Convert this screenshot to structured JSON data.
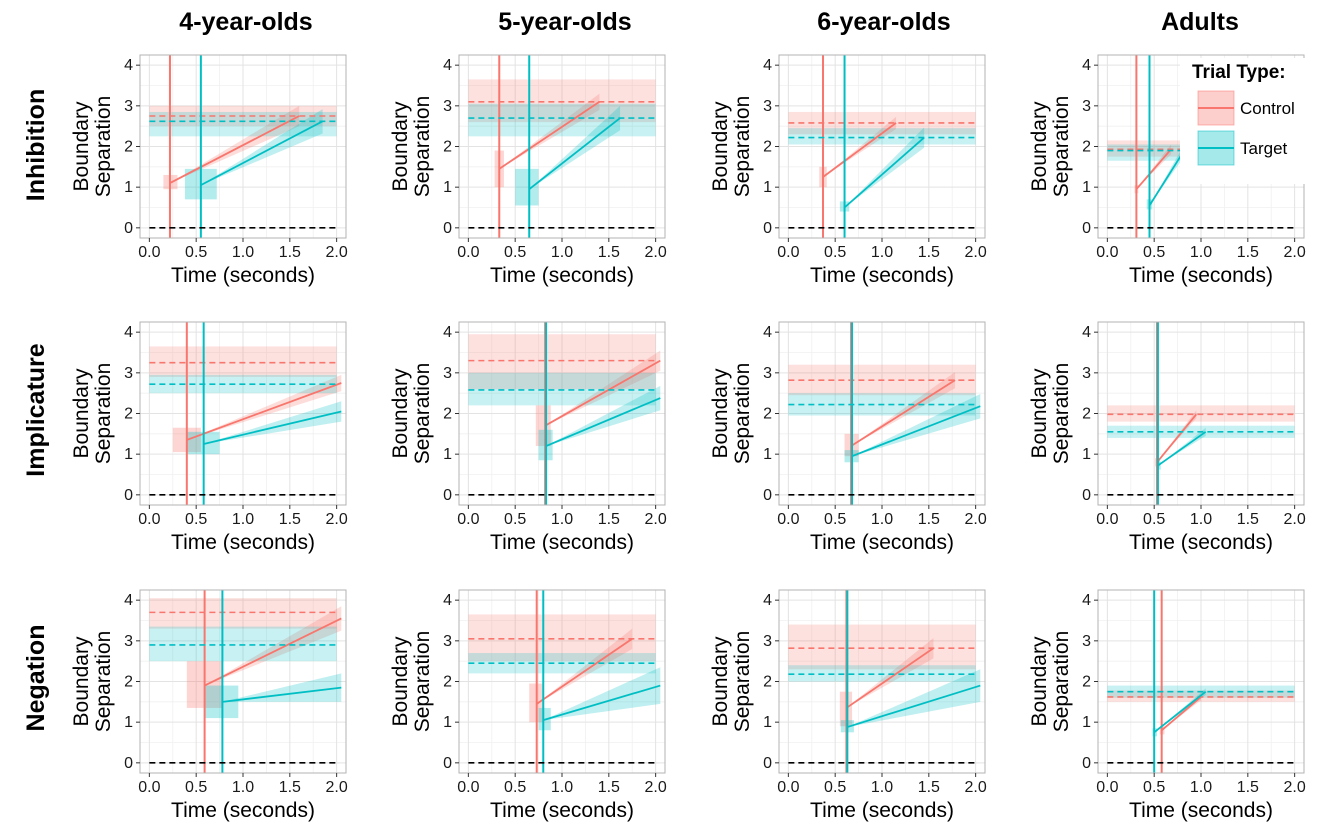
{
  "chart_data": {
    "type": "line",
    "colors": {
      "control": "#F8766D",
      "target": "#00BFC4",
      "zero_line": "#000000"
    },
    "column_titles": [
      "4-year-olds",
      "5-year-olds",
      "6-year-olds",
      "Adults"
    ],
    "row_titles": [
      "Inhibition",
      "Implicature",
      "Negation"
    ],
    "xlabel": "Time (seconds)",
    "ylabel_line1": "Boundary",
    "ylabel_line2": "Separation",
    "xlim": [
      -0.1,
      2.1
    ],
    "ylim": [
      -0.25,
      4.25
    ],
    "x_ticks": [
      "0.0",
      "0.5",
      "1.0",
      "1.5",
      "2.0"
    ],
    "y_ticks": [
      "0",
      "1",
      "2",
      "3",
      "4"
    ],
    "grid": true,
    "legend": {
      "title": "Trial Type:",
      "placement": "top-right",
      "items": [
        {
          "label": "Control",
          "key": "control"
        },
        {
          "label": "Target",
          "key": "target"
        }
      ]
    },
    "panels": [
      {
        "row": 0,
        "col": 0,
        "series": {
          "control": {
            "ndt": 0.22,
            "bound": 2.75,
            "bound_band": [
              2.5,
              3.0
            ],
            "start": [
              0.22,
              1.1
            ],
            "start_box": [
              0.15,
              0.3,
              0.95,
              1.3
            ],
            "end": [
              1.6,
              2.75
            ],
            "wedge_halfwidth": 0.25
          },
          "target": {
            "ndt": 0.55,
            "bound": 2.62,
            "bound_band": [
              2.25,
              2.85
            ],
            "start": [
              0.55,
              1.05
            ],
            "start_box": [
              0.38,
              0.72,
              0.7,
              1.45
            ],
            "end": [
              1.85,
              2.62
            ],
            "wedge_halfwidth": 0.3
          }
        }
      },
      {
        "row": 0,
        "col": 1,
        "series": {
          "control": {
            "ndt": 0.33,
            "bound": 3.1,
            "bound_band": [
              2.6,
              3.65
            ],
            "start": [
              0.33,
              1.45
            ],
            "start_box": [
              0.28,
              0.38,
              1.0,
              1.9
            ],
            "end": [
              1.4,
              3.1
            ],
            "wedge_halfwidth": 0.2
          },
          "target": {
            "ndt": 0.65,
            "bound": 2.7,
            "bound_band": [
              2.25,
              3.05
            ],
            "start": [
              0.65,
              0.95
            ],
            "start_box": [
              0.5,
              0.75,
              0.55,
              1.45
            ],
            "end": [
              1.62,
              2.7
            ],
            "wedge_halfwidth": 0.3
          }
        }
      },
      {
        "row": 0,
        "col": 2,
        "series": {
          "control": {
            "ndt": 0.37,
            "bound": 2.58,
            "bound_band": [
              2.3,
              2.85
            ],
            "start": [
              0.37,
              1.25
            ],
            "start_box": [
              0.33,
              0.41,
              1.0,
              1.5
            ],
            "end": [
              1.15,
              2.58
            ],
            "wedge_halfwidth": 0.15
          },
          "target": {
            "ndt": 0.6,
            "bound": 2.22,
            "bound_band": [
              2.05,
              2.45
            ],
            "start": [
              0.6,
              0.5
            ],
            "start_box": [
              0.55,
              0.65,
              0.4,
              0.65
            ],
            "end": [
              1.45,
              2.22
            ],
            "wedge_halfwidth": 0.25
          }
        }
      },
      {
        "row": 0,
        "col": 3,
        "series": {
          "control": {
            "ndt": 0.31,
            "bound": 1.93,
            "bound_band": [
              1.75,
              2.15
            ],
            "start": [
              0.31,
              0.95
            ],
            "start_box": [
              0.29,
              0.33,
              0.85,
              1.05
            ],
            "end": [
              0.68,
              1.93
            ],
            "wedge_halfwidth": 0.12
          },
          "target": {
            "ndt": 0.45,
            "bound": 1.9,
            "bound_band": [
              1.65,
              2.05
            ],
            "start": [
              0.45,
              0.55
            ],
            "start_box": [
              0.42,
              0.48,
              0.45,
              0.7
            ],
            "end": [
              0.82,
              1.9
            ],
            "wedge_halfwidth": 0.15
          }
        }
      },
      {
        "row": 1,
        "col": 0,
        "series": {
          "control": {
            "ndt": 0.4,
            "bound": 3.25,
            "bound_band": [
              2.9,
              3.65
            ],
            "start": [
              0.4,
              1.35
            ],
            "start_box": [
              0.25,
              0.55,
              1.05,
              1.65
            ],
            "end": [
              2.05,
              2.75
            ],
            "wedge_halfwidth": 0.2
          },
          "target": {
            "ndt": 0.58,
            "bound": 2.72,
            "bound_band": [
              2.5,
              2.95
            ],
            "start": [
              0.58,
              1.25
            ],
            "start_box": [
              0.4,
              0.75,
              1.0,
              1.55
            ],
            "end": [
              2.05,
              2.05
            ],
            "wedge_halfwidth": 0.25
          }
        }
      },
      {
        "row": 1,
        "col": 1,
        "series": {
          "control": {
            "ndt": 0.82,
            "bound": 3.3,
            "bound_band": [
              2.6,
              3.95
            ],
            "start": [
              0.82,
              1.7
            ],
            "start_box": [
              0.72,
              0.88,
              1.2,
              2.2
            ],
            "end": [
              2.05,
              3.3
            ],
            "wedge_halfwidth": 0.25
          },
          "target": {
            "ndt": 0.83,
            "bound": 2.58,
            "bound_band": [
              2.2,
              3.0
            ],
            "start": [
              0.83,
              1.2
            ],
            "start_box": [
              0.75,
              0.9,
              0.85,
              1.6
            ],
            "end": [
              2.05,
              2.38
            ],
            "wedge_halfwidth": 0.3
          }
        }
      },
      {
        "row": 1,
        "col": 2,
        "series": {
          "control": {
            "ndt": 0.67,
            "bound": 2.82,
            "bound_band": [
              2.45,
              3.2
            ],
            "start": [
              0.67,
              1.2
            ],
            "start_box": [
              0.6,
              0.75,
              0.95,
              1.5
            ],
            "end": [
              1.78,
              2.82
            ],
            "wedge_halfwidth": 0.2
          },
          "target": {
            "ndt": 0.68,
            "bound": 2.22,
            "bound_band": [
              1.95,
              2.5
            ],
            "start": [
              0.68,
              0.95
            ],
            "start_box": [
              0.6,
              0.75,
              0.8,
              1.1
            ],
            "end": [
              2.05,
              2.18
            ],
            "wedge_halfwidth": 0.3
          }
        }
      },
      {
        "row": 1,
        "col": 3,
        "series": {
          "control": {
            "ndt": 0.53,
            "bound": 1.98,
            "bound_band": [
              1.8,
              2.2
            ],
            "start": [
              0.53,
              0.8
            ],
            "start_box": [
              0.51,
              0.56,
              0.7,
              0.9
            ],
            "end": [
              0.95,
              1.98
            ],
            "wedge_halfwidth": 0.1
          },
          "target": {
            "ndt": 0.54,
            "bound": 1.55,
            "bound_band": [
              1.4,
              1.7
            ],
            "start": [
              0.54,
              0.72
            ],
            "start_box": [
              0.52,
              0.57,
              0.62,
              0.82
            ],
            "end": [
              1.05,
              1.55
            ],
            "wedge_halfwidth": 0.1
          }
        }
      },
      {
        "row": 2,
        "col": 0,
        "series": {
          "control": {
            "ndt": 0.59,
            "bound": 3.7,
            "bound_band": [
              3.3,
              4.05
            ],
            "start": [
              0.59,
              1.9
            ],
            "start_box": [
              0.4,
              0.78,
              1.35,
              2.5
            ],
            "end": [
              2.05,
              3.55
            ],
            "wedge_halfwidth": 0.3
          },
          "target": {
            "ndt": 0.78,
            "bound": 2.9,
            "bound_band": [
              2.5,
              3.35
            ],
            "start": [
              0.78,
              1.5
            ],
            "start_box": [
              0.6,
              0.95,
              1.1,
              1.9
            ],
            "end": [
              2.05,
              1.85
            ],
            "wedge_halfwidth": 0.35
          }
        }
      },
      {
        "row": 2,
        "col": 1,
        "series": {
          "control": {
            "ndt": 0.73,
            "bound": 3.05,
            "bound_band": [
              2.5,
              3.65
            ],
            "start": [
              0.73,
              1.45
            ],
            "start_box": [
              0.65,
              0.8,
              1.0,
              1.95
            ],
            "end": [
              1.75,
              3.05
            ],
            "wedge_halfwidth": 0.25
          },
          "target": {
            "ndt": 0.8,
            "bound": 2.45,
            "bound_band": [
              2.2,
              2.7
            ],
            "start": [
              0.8,
              1.05
            ],
            "start_box": [
              0.75,
              0.88,
              0.8,
              1.35
            ],
            "end": [
              2.05,
              1.9
            ],
            "wedge_halfwidth": 0.45
          }
        }
      },
      {
        "row": 2,
        "col": 2,
        "series": {
          "control": {
            "ndt": 0.62,
            "bound": 2.82,
            "bound_band": [
              2.3,
              3.4
            ],
            "start": [
              0.62,
              1.35
            ],
            "start_box": [
              0.55,
              0.68,
              0.9,
              1.75
            ],
            "end": [
              1.55,
              2.82
            ],
            "wedge_halfwidth": 0.25
          },
          "target": {
            "ndt": 0.63,
            "bound": 2.18,
            "bound_band": [
              2.0,
              2.4
            ],
            "start": [
              0.63,
              0.88
            ],
            "start_box": [
              0.56,
              0.7,
              0.75,
              1.05
            ],
            "end": [
              2.05,
              1.9
            ],
            "wedge_halfwidth": 0.4
          }
        }
      },
      {
        "row": 2,
        "col": 3,
        "series": {
          "control": {
            "ndt": 0.58,
            "bound": 1.62,
            "bound_band": [
              1.5,
              1.78
            ],
            "start": [
              0.58,
              0.8
            ],
            "start_box": [
              0.56,
              0.61,
              0.7,
              0.9
            ],
            "end": [
              1.0,
              1.62
            ],
            "wedge_halfwidth": 0.08
          },
          "target": {
            "ndt": 0.5,
            "bound": 1.75,
            "bound_band": [
              1.6,
              1.9
            ],
            "start": [
              0.5,
              0.75
            ],
            "start_box": [
              0.48,
              0.53,
              0.65,
              0.85
            ],
            "end": [
              1.05,
              1.75
            ],
            "wedge_halfwidth": 0.08
          }
        }
      }
    ]
  }
}
